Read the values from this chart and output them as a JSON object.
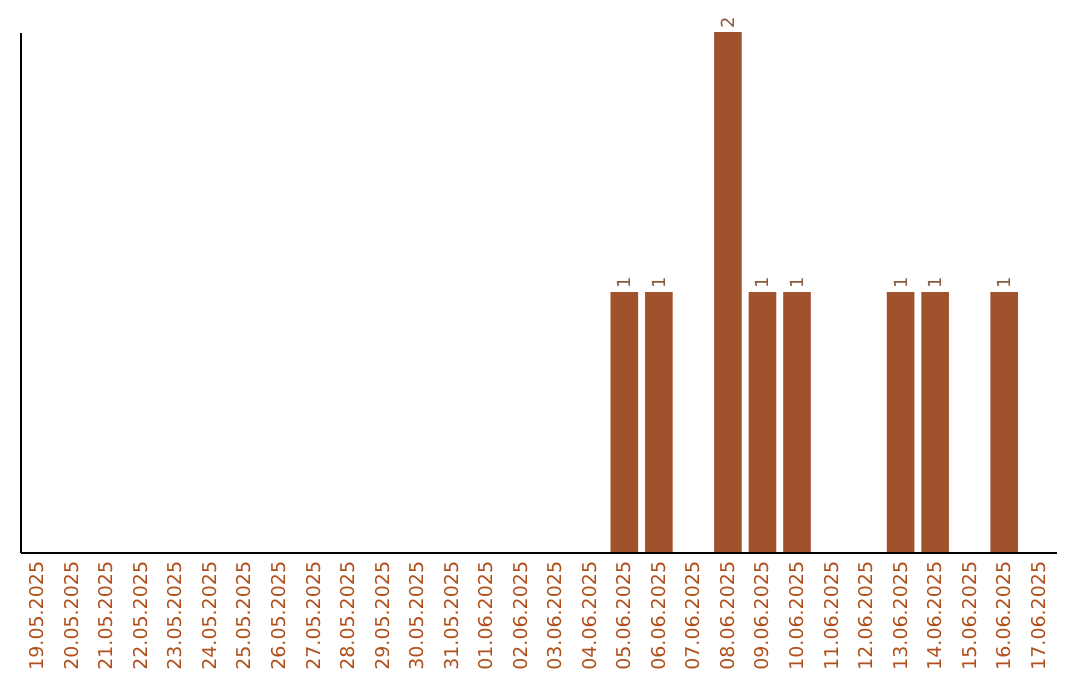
{
  "chart_data": {
    "type": "bar",
    "categories": [
      "19.05.2025",
      "20.05.2025",
      "21.05.2025",
      "22.05.2025",
      "23.05.2025",
      "24.05.2025",
      "25.05.2025",
      "26.05.2025",
      "27.05.2025",
      "28.05.2025",
      "29.05.2025",
      "30.05.2025",
      "31.05.2025",
      "01.06.2025",
      "02.06.2025",
      "03.06.2025",
      "04.06.2025",
      "05.06.2025",
      "06.06.2025",
      "07.06.2025",
      "08.06.2025",
      "09.06.2025",
      "10.06.2025",
      "11.06.2025",
      "12.06.2025",
      "13.06.2025",
      "14.06.2025",
      "15.06.2025",
      "16.06.2025",
      "17.06.2025"
    ],
    "values": [
      null,
      null,
      null,
      null,
      null,
      null,
      null,
      null,
      null,
      null,
      null,
      null,
      null,
      null,
      null,
      null,
      null,
      1,
      1,
      null,
      2,
      1,
      1,
      null,
      null,
      1,
      1,
      null,
      1,
      null
    ],
    "data_labels": true,
    "color": "#a0522d",
    "grid": false,
    "tick_labels": "x"
  }
}
